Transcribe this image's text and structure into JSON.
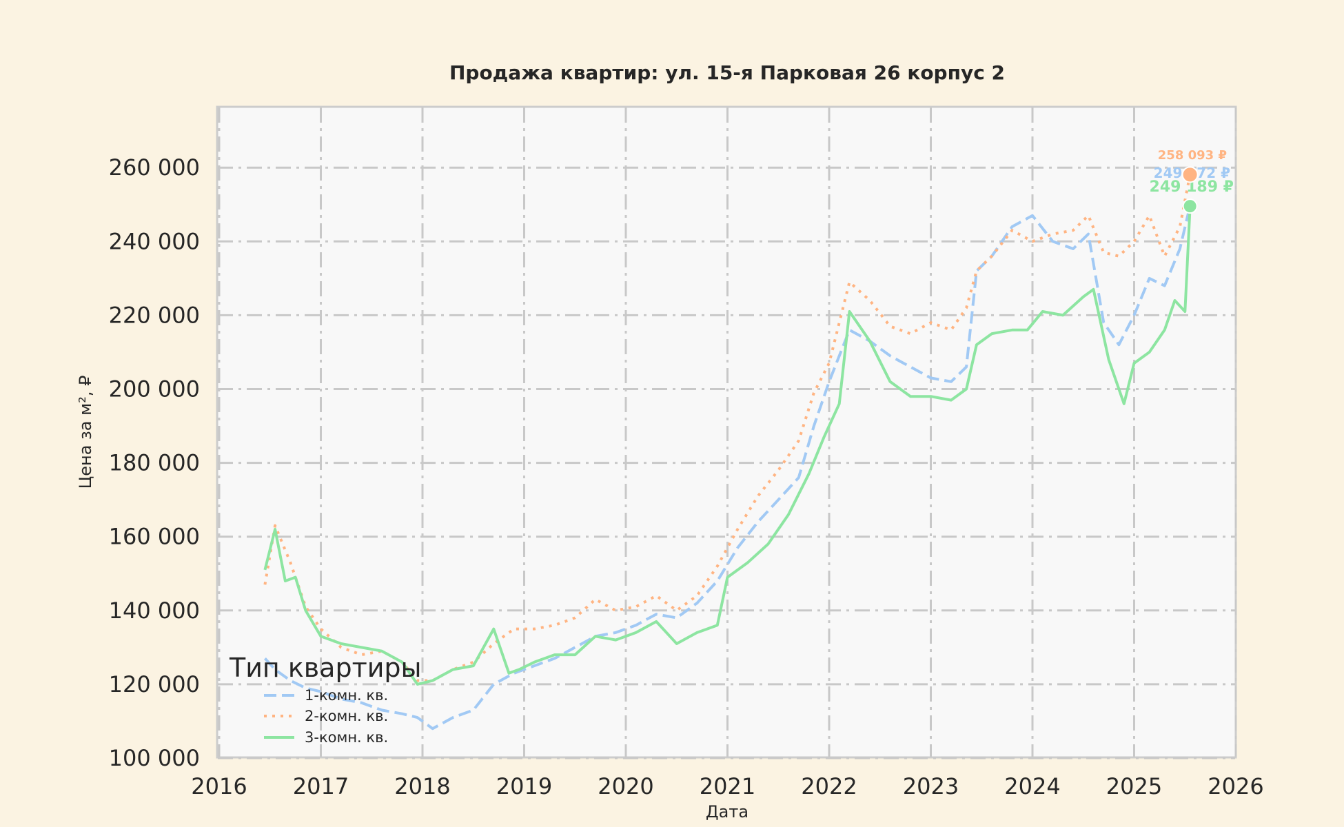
{
  "chart_data": {
    "type": "line",
    "title": "Продажа квартир: ул. 15-я Парковая 26 корпус 2",
    "xlabel": "Дата",
    "ylabel": "Цена за м², ₽",
    "xlim": [
      2016,
      2026
    ],
    "ylim": [
      100000,
      275000
    ],
    "x_ticks": [
      "2016",
      "2017",
      "2018",
      "2019",
      "2020",
      "2021",
      "2022",
      "2023",
      "2024",
      "2025",
      "2026"
    ],
    "y_ticks": [
      "100 000",
      "120 000",
      "140 000",
      "160 000",
      "180 000",
      "200 000",
      "220 000",
      "240 000",
      "260 000"
    ],
    "grid": true,
    "legend": {
      "title": "Тип квартиры",
      "position": "lower left",
      "entries": [
        "1-комн. кв.",
        "2-комн. кв.",
        "3-комн. кв."
      ]
    },
    "series": [
      {
        "name": "1-комн. кв.",
        "color": "#a1c9f4",
        "style": "dashed",
        "x": [
          2016.45,
          2016.55,
          2016.7,
          2016.85,
          2017.0,
          2017.2,
          2017.4,
          2017.6,
          2017.8,
          2017.95,
          2018.1,
          2018.3,
          2018.5,
          2018.7,
          2018.9,
          2019.1,
          2019.3,
          2019.5,
          2019.7,
          2019.9,
          2020.1,
          2020.3,
          2020.5,
          2020.7,
          2020.9,
          2021.1,
          2021.3,
          2021.5,
          2021.7,
          2021.85,
          2022.0,
          2022.2,
          2022.4,
          2022.6,
          2022.8,
          2023.0,
          2023.2,
          2023.35,
          2023.45,
          2023.6,
          2023.8,
          2024.0,
          2024.2,
          2024.4,
          2024.55,
          2024.7,
          2024.85,
          2025.0,
          2025.15,
          2025.3,
          2025.45,
          2025.55
        ],
        "values": [
          127000,
          124000,
          121000,
          119000,
          118000,
          116000,
          115000,
          113000,
          112000,
          111000,
          108000,
          111000,
          113000,
          120000,
          123000,
          125000,
          127000,
          130000,
          133000,
          134000,
          136000,
          139000,
          138000,
          142000,
          148000,
          157000,
          164000,
          170000,
          176000,
          190000,
          202000,
          216000,
          213000,
          209000,
          206000,
          203000,
          202000,
          206000,
          232000,
          236000,
          244000,
          247000,
          240000,
          238000,
          242000,
          218000,
          212000,
          220000,
          230000,
          228000,
          238000,
          249672
        ]
      },
      {
        "name": "2-комн. кв.",
        "color": "#ffb482",
        "style": "dotted",
        "x": [
          2016.45,
          2016.55,
          2016.7,
          2016.85,
          2017.0,
          2017.2,
          2017.4,
          2017.6,
          2017.8,
          2017.95,
          2018.1,
          2018.3,
          2018.5,
          2018.7,
          2018.9,
          2019.1,
          2019.3,
          2019.5,
          2019.7,
          2019.9,
          2020.1,
          2020.3,
          2020.5,
          2020.7,
          2020.9,
          2021.1,
          2021.3,
          2021.5,
          2021.7,
          2021.85,
          2022.0,
          2022.2,
          2022.4,
          2022.6,
          2022.8,
          2023.0,
          2023.2,
          2023.35,
          2023.45,
          2023.6,
          2023.8,
          2024.0,
          2024.2,
          2024.4,
          2024.55,
          2024.7,
          2024.85,
          2025.0,
          2025.15,
          2025.3,
          2025.45,
          2025.55
        ],
        "values": [
          147000,
          163000,
          153000,
          141000,
          135000,
          130000,
          128000,
          129000,
          126000,
          121000,
          121000,
          124000,
          126000,
          131000,
          135000,
          135000,
          136000,
          138000,
          143000,
          140000,
          141000,
          144000,
          140000,
          144000,
          152000,
          162000,
          171000,
          178000,
          186000,
          199000,
          207000,
          229000,
          224000,
          217000,
          215000,
          218000,
          216000,
          222000,
          232000,
          236000,
          243000,
          240000,
          242000,
          243000,
          247000,
          237000,
          236000,
          240000,
          247000,
          236000,
          244000,
          258093
        ]
      },
      {
        "name": "3-комн. кв.",
        "color": "#8de5a1",
        "style": "solid",
        "x": [
          2016.45,
          2016.55,
          2016.65,
          2016.75,
          2016.85,
          2017.0,
          2017.2,
          2017.4,
          2017.6,
          2017.8,
          2017.95,
          2018.1,
          2018.3,
          2018.5,
          2018.7,
          2018.85,
          2018.95,
          2019.1,
          2019.3,
          2019.5,
          2019.7,
          2019.9,
          2020.1,
          2020.3,
          2020.5,
          2020.7,
          2020.9,
          2021.0,
          2021.2,
          2021.4,
          2021.6,
          2021.8,
          2021.95,
          2022.1,
          2022.2,
          2022.4,
          2022.6,
          2022.8,
          2023.0,
          2023.2,
          2023.35,
          2023.45,
          2023.6,
          2023.8,
          2023.95,
          2024.1,
          2024.3,
          2024.5,
          2024.6,
          2024.75,
          2024.9,
          2025.0,
          2025.15,
          2025.3,
          2025.4,
          2025.5,
          2025.55
        ],
        "values": [
          151000,
          162000,
          148000,
          149000,
          140000,
          133000,
          131000,
          130000,
          129000,
          126000,
          120000,
          121000,
          124000,
          125000,
          135000,
          123000,
          124000,
          126000,
          128000,
          128000,
          133000,
          132000,
          134000,
          137000,
          131000,
          134000,
          136000,
          149000,
          153000,
          158000,
          166000,
          177000,
          187000,
          196000,
          221000,
          213000,
          202000,
          198000,
          198000,
          197000,
          200000,
          212000,
          215000,
          216000,
          216000,
          221000,
          220000,
          225000,
          227000,
          208000,
          196000,
          207000,
          210000,
          216000,
          224000,
          221000,
          249189
        ]
      }
    ],
    "annotations": [
      {
        "text": "258 093 ₽",
        "color": "#ffb482",
        "x": 2025.55,
        "y": 258093
      },
      {
        "text": "249 672 ₽",
        "color": "#a1c9f4",
        "x": 2025.55,
        "y": 249672
      },
      {
        "text": "249 189 ₽",
        "color": "#8de5a1",
        "x": 2025.55,
        "y": 249189
      }
    ]
  }
}
